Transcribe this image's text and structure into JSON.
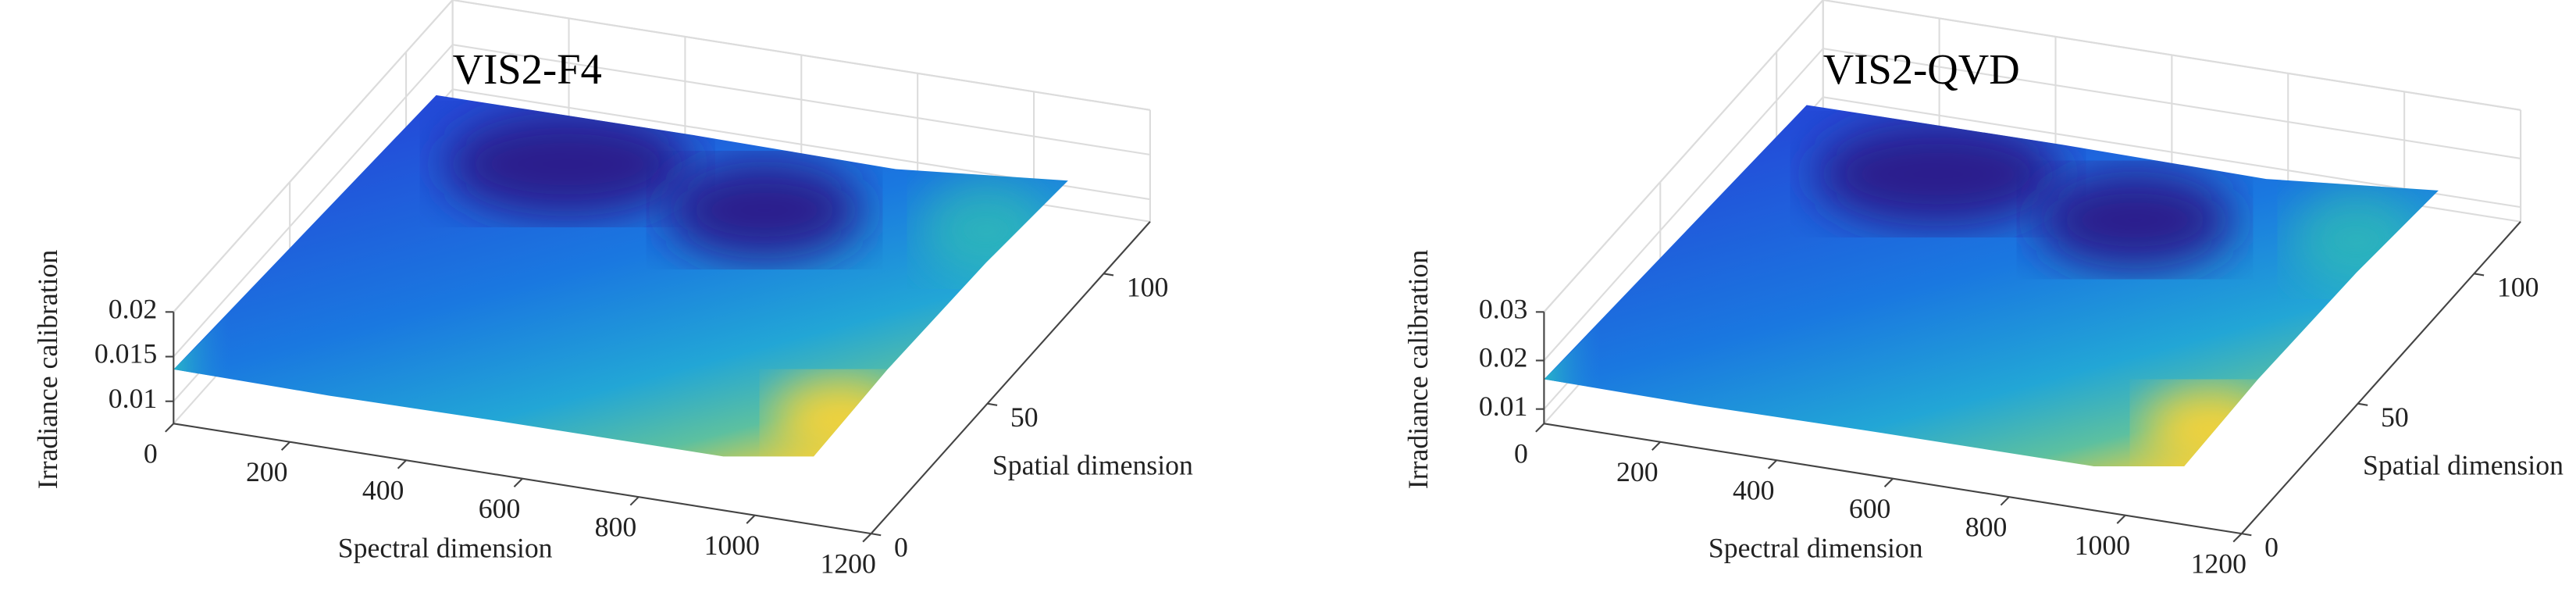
{
  "chart_data": [
    {
      "type": "surface",
      "title": "VIS2-F4",
      "xlabel": "Spectral dimension",
      "ylabel": "Spatial dimension",
      "zlabel": "Irradiance calibration",
      "xlim": [
        0,
        1200
      ],
      "xticks": [
        0,
        200,
        400,
        600,
        800,
        1000,
        1200
      ],
      "ylim": [
        0,
        120
      ],
      "yticks": [
        0,
        50,
        100
      ],
      "zlim": [
        0.0075,
        0.02
      ],
      "zticks": [
        0.01,
        0.015,
        0.02
      ],
      "grid": true
    },
    {
      "type": "surface",
      "title": "VIS2-QVD",
      "xlabel": "Spectral dimension",
      "ylabel": "Spatial dimension",
      "zlabel": "Irradiance calibration",
      "xlim": [
        0,
        1200
      ],
      "xticks": [
        0,
        200,
        400,
        600,
        800,
        1000,
        1200
      ],
      "ylim": [
        0,
        120
      ],
      "yticks": [
        0,
        50,
        100
      ],
      "zlim": [
        0.007,
        0.03
      ],
      "zticks": [
        0.01,
        0.02,
        0.03
      ],
      "grid": true
    }
  ]
}
